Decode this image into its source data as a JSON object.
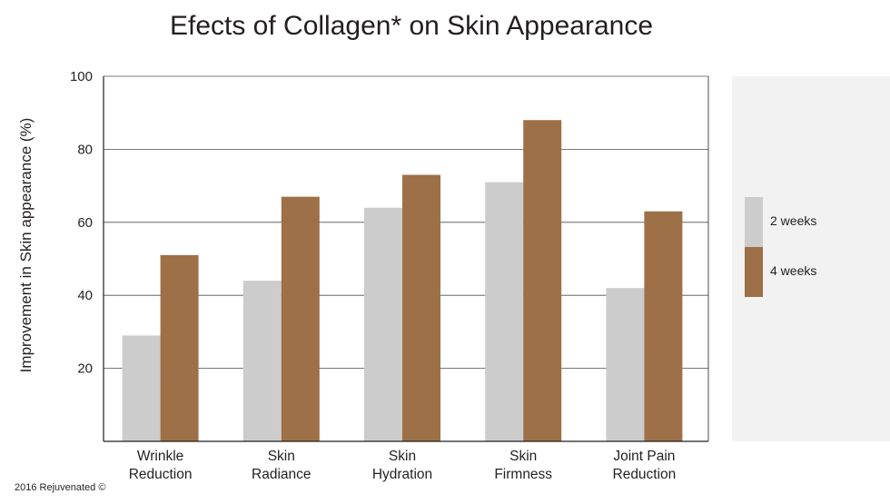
{
  "chart_data": {
    "type": "bar",
    "title": "Efects of Collagen* on Skin Appearance",
    "xlabel": "",
    "ylabel": "Improvement in Skin appearance (%)",
    "ylim": [
      0,
      100
    ],
    "yticks": [
      20,
      40,
      60,
      80,
      100
    ],
    "grid": true,
    "legend_position": "right",
    "categories": [
      [
        "Wrinkle",
        "Reduction"
      ],
      [
        "Skin",
        "Radiance"
      ],
      [
        "Skin",
        "Hydration"
      ],
      [
        "Skin",
        "Firmness"
      ],
      [
        "Joint Pain",
        "Reduction"
      ]
    ],
    "series": [
      {
        "name": "2 weeks",
        "color": "#cccccc",
        "values": [
          29,
          44,
          64,
          71,
          42
        ]
      },
      {
        "name": "4 weeks",
        "color": "#9e7047",
        "values": [
          51,
          67,
          73,
          88,
          63
        ]
      }
    ],
    "legend_background": "#f2f2f2"
  },
  "footer": {
    "credit": "2016 Rejuvenated ©"
  }
}
